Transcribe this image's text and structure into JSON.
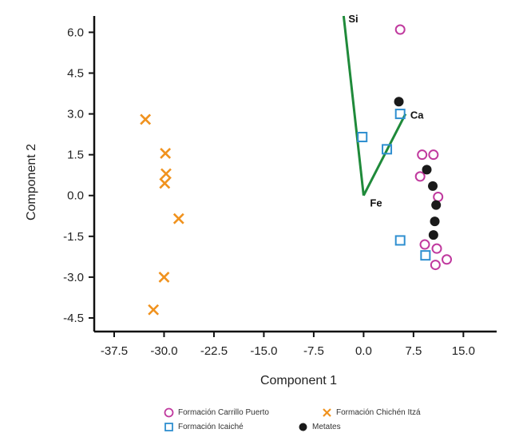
{
  "chart_data": {
    "type": "scatter",
    "xlabel": "Component 1",
    "ylabel": "Component 2",
    "xlim": [
      -40.5,
      20
    ],
    "ylim": [
      -5,
      6.6
    ],
    "xticks": [
      "-37.5",
      "-30.0",
      "-22.5",
      "-15.0",
      "-7.5",
      "0.0",
      "7.5",
      "15.0"
    ],
    "xtick_values": [
      -37.5,
      -30,
      -22.5,
      -15,
      -7.5,
      0,
      7.5,
      15
    ],
    "yticks": [
      "6.0",
      "4.5",
      "3.0",
      "1.5",
      "0.0",
      "-1.5",
      "-3.0",
      "-4.5"
    ],
    "ytick_values": [
      6,
      4.5,
      3,
      1.5,
      0,
      -1.5,
      -3,
      -4.5
    ],
    "grid": false,
    "legend_position": "bottom",
    "series": [
      {
        "name": "Formación Carrillo Puerto",
        "marker": "open-circle",
        "color": "#c0399e",
        "points": [
          [
            5.5,
            6.1
          ],
          [
            8.8,
            1.5
          ],
          [
            10.5,
            1.5
          ],
          [
            8.5,
            0.7
          ],
          [
            11.2,
            -0.05
          ],
          [
            9.2,
            -1.8
          ],
          [
            11.0,
            -1.95
          ],
          [
            12.5,
            -2.35
          ],
          [
            10.8,
            -2.55
          ]
        ]
      },
      {
        "name": "Formación Chichén Itzá",
        "marker": "x",
        "color": "#f0921e",
        "points": [
          [
            -32.8,
            2.8
          ],
          [
            -29.8,
            1.55
          ],
          [
            -29.7,
            0.8
          ],
          [
            -29.9,
            0.45
          ],
          [
            -27.8,
            -0.85
          ],
          [
            -30.0,
            -3.0
          ],
          [
            -31.6,
            -4.2
          ]
        ]
      },
      {
        "name": "Formación Icaiché",
        "marker": "open-square",
        "color": "#2f8fd0",
        "points": [
          [
            5.5,
            3.0
          ],
          [
            -0.2,
            2.15
          ],
          [
            3.5,
            1.7
          ],
          [
            5.5,
            -1.65
          ],
          [
            9.3,
            -2.2
          ]
        ]
      },
      {
        "name": "Metates",
        "marker": "filled-circle",
        "color": "#1a1a1a",
        "points": [
          [
            5.3,
            3.45
          ],
          [
            9.5,
            0.95
          ],
          [
            10.4,
            0.35
          ],
          [
            10.9,
            -0.35
          ],
          [
            10.7,
            -0.95
          ],
          [
            10.5,
            -1.45
          ]
        ]
      }
    ],
    "vectors": {
      "color": "#1f8a3a",
      "origin": [
        0,
        0
      ],
      "items": [
        {
          "label": "Si",
          "x": -3.0,
          "y": 6.6
        },
        {
          "label": "Fe",
          "x": 0.0,
          "y": 0.0
        },
        {
          "label": "Ca",
          "x": 6.3,
          "y": 3.0
        }
      ]
    }
  }
}
